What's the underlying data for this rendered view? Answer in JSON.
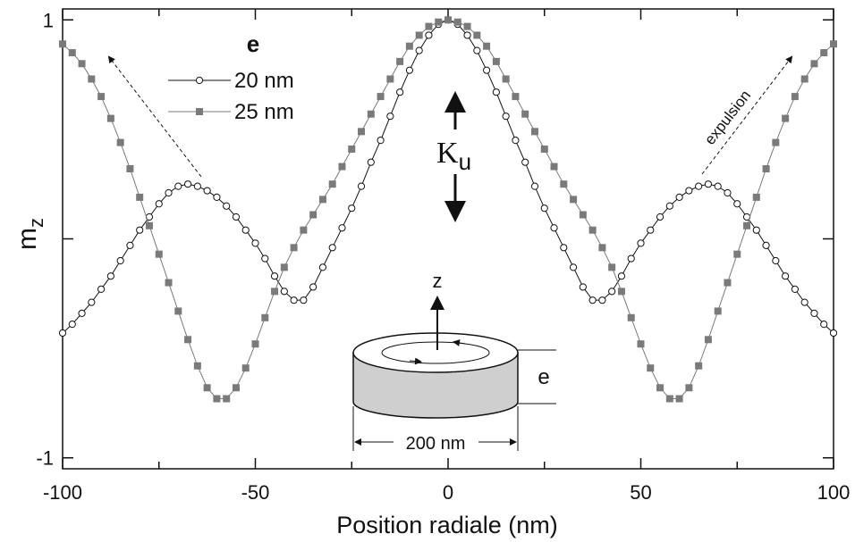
{
  "chart_data": {
    "type": "line",
    "x_label": "Position radiale (nm)",
    "y_label": {
      "main": "m",
      "sub": "z"
    },
    "legend_title": "e",
    "annotations": {
      "anisotropy": {
        "main": "K",
        "sub": "u"
      },
      "expulsion": "expulsion",
      "axis_z": "z",
      "thickness": "e",
      "diameter": "200 nm"
    },
    "xlim": [
      -100,
      100
    ],
    "xticks": [
      -100,
      -50,
      0,
      50,
      100
    ],
    "xminorticks": [
      -75,
      -25,
      25,
      75
    ],
    "ylim": [
      -1.05,
      1.05
    ],
    "yticks": [
      -1,
      1
    ],
    "yticks_unlabeled": [
      0
    ],
    "x": [
      -100,
      -97.5,
      -95,
      -92.5,
      -90,
      -87.5,
      -85,
      -82.5,
      -80,
      -77.5,
      -75,
      -72.5,
      -70,
      -67.5,
      -65,
      -62.5,
      -60,
      -57.5,
      -55,
      -52.5,
      -50,
      -47.5,
      -45,
      -42.5,
      -40,
      -37.5,
      -35,
      -32.5,
      -30,
      -27.5,
      -25,
      -22.5,
      -20,
      -17.5,
      -15,
      -12.5,
      -10,
      -7.5,
      -5,
      -2.5,
      0,
      2.5,
      5,
      7.5,
      10,
      12.5,
      15,
      17.5,
      20,
      22.5,
      25,
      27.5,
      30,
      32.5,
      35,
      37.5,
      40,
      42.5,
      45,
      47.5,
      50,
      52.5,
      55,
      57.5,
      60,
      62.5,
      65,
      67.5,
      70,
      72.5,
      75,
      77.5,
      80,
      82.5,
      85,
      87.5,
      90,
      92.5,
      95,
      97.5,
      100
    ],
    "series": [
      {
        "name": "20 nm",
        "color": "#111111",
        "marker": "circle",
        "values": [
          -0.43,
          -0.39,
          -0.34,
          -0.29,
          -0.23,
          -0.17,
          -0.1,
          -0.03,
          0.04,
          0.1,
          0.16,
          0.21,
          0.24,
          0.25,
          0.24,
          0.22,
          0.19,
          0.15,
          0.1,
          0.04,
          -0.02,
          -0.09,
          -0.17,
          -0.24,
          -0.28,
          -0.28,
          -0.22,
          -0.13,
          -0.04,
          0.05,
          0.14,
          0.24,
          0.35,
          0.45,
          0.56,
          0.67,
          0.77,
          0.86,
          0.93,
          0.98,
          1.0,
          0.98,
          0.93,
          0.86,
          0.77,
          0.67,
          0.56,
          0.45,
          0.35,
          0.24,
          0.14,
          0.05,
          -0.04,
          -0.13,
          -0.22,
          -0.28,
          -0.28,
          -0.24,
          -0.17,
          -0.09,
          -0.02,
          0.04,
          0.1,
          0.15,
          0.19,
          0.22,
          0.24,
          0.25,
          0.24,
          0.21,
          0.16,
          0.1,
          0.04,
          -0.03,
          -0.1,
          -0.17,
          -0.23,
          -0.29,
          -0.34,
          -0.39,
          -0.43
        ]
      },
      {
        "name": "25 nm",
        "color": "#7a7a7a",
        "marker": "square",
        "values": [
          0.89,
          0.85,
          0.8,
          0.73,
          0.65,
          0.55,
          0.44,
          0.32,
          0.19,
          0.06,
          -0.07,
          -0.2,
          -0.33,
          -0.46,
          -0.58,
          -0.68,
          -0.73,
          -0.73,
          -0.68,
          -0.59,
          -0.48,
          -0.36,
          -0.24,
          -0.13,
          -0.04,
          0.04,
          0.11,
          0.18,
          0.25,
          0.33,
          0.41,
          0.49,
          0.57,
          0.65,
          0.73,
          0.81,
          0.88,
          0.93,
          0.97,
          0.99,
          1.0,
          0.99,
          0.97,
          0.93,
          0.88,
          0.81,
          0.73,
          0.65,
          0.57,
          0.49,
          0.41,
          0.33,
          0.25,
          0.18,
          0.11,
          0.04,
          -0.04,
          -0.13,
          -0.24,
          -0.36,
          -0.48,
          -0.59,
          -0.68,
          -0.73,
          -0.73,
          -0.68,
          -0.58,
          -0.46,
          -0.33,
          -0.2,
          -0.07,
          0.06,
          0.19,
          0.32,
          0.44,
          0.55,
          0.65,
          0.73,
          0.8,
          0.85,
          0.89
        ]
      }
    ]
  }
}
